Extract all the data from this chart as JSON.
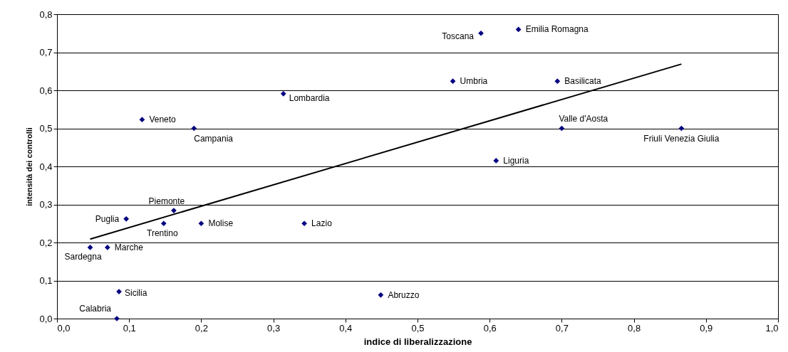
{
  "chart_data": {
    "type": "scatter",
    "xlabel": "indice di liberalizzazione",
    "ylabel": "intensità dei controlli",
    "grid": "y",
    "xlim": [
      0,
      1
    ],
    "ylim": [
      0,
      0.8
    ],
    "xticks": [
      {
        "value": 0,
        "label": "0,0"
      },
      {
        "value": 0.1,
        "label": "0,1"
      },
      {
        "value": 0.2,
        "label": "0,2"
      },
      {
        "value": 0.3,
        "label": "0,3"
      },
      {
        "value": 0.4,
        "label": "0,4"
      },
      {
        "value": 0.5,
        "label": "0,5"
      },
      {
        "value": 0.6,
        "label": "0,6"
      },
      {
        "value": 0.7,
        "label": "0,7"
      },
      {
        "value": 0.8,
        "label": "0,8"
      },
      {
        "value": 0.9,
        "label": "0,9"
      },
      {
        "value": 1,
        "label": "1,0"
      }
    ],
    "yticks": [
      {
        "value": 0,
        "label": "0,0"
      },
      {
        "value": 0.1,
        "label": "0,1"
      },
      {
        "value": 0.2,
        "label": "0,2"
      },
      {
        "value": 0.3,
        "label": "0,3"
      },
      {
        "value": 0.4,
        "label": "0,4"
      },
      {
        "value": 0.5,
        "label": "0,5"
      },
      {
        "value": 0.6,
        "label": "0,6"
      },
      {
        "value": 0.7,
        "label": "0,7"
      },
      {
        "value": 0.8,
        "label": "0,8"
      }
    ],
    "series": [
      {
        "marker": "diamond",
        "color": "#000080",
        "x": [
          0.64,
          0.588,
          0.549,
          0.694,
          0.314,
          0.118,
          0.19,
          0.7,
          0.866,
          0.609,
          0.162,
          0.096,
          0.148,
          0.2,
          0.343,
          0.046,
          0.07,
          0.086,
          0.449,
          0.083
        ],
        "values": [
          0.76,
          0.75,
          0.624,
          0.624,
          0.591,
          0.523,
          0.5,
          0.5,
          0.5,
          0.415,
          0.284,
          0.262,
          0.25,
          0.25,
          0.25,
          0.187,
          0.187,
          0.071,
          0.062,
          0.0
        ]
      },
      {
        "type": "line",
        "marker": "none",
        "color": "#000000",
        "x": [
          0.046,
          0.866
        ],
        "values": [
          0.209,
          0.669
        ]
      }
    ],
    "annotations": [
      {
        "text": "Emilia Romagna",
        "x": 0.64,
        "y": 0.76
      },
      {
        "text": "Toscana",
        "x": 0.588,
        "y": 0.75
      },
      {
        "text": "Umbria",
        "x": 0.549,
        "y": 0.624
      },
      {
        "text": "Basilicata",
        "x": 0.694,
        "y": 0.624
      },
      {
        "text": "Lombardia",
        "x": 0.314,
        "y": 0.591
      },
      {
        "text": "Veneto",
        "x": 0.118,
        "y": 0.523
      },
      {
        "text": "Campania",
        "x": 0.19,
        "y": 0.5
      },
      {
        "text": "Valle d'Aosta",
        "x": 0.7,
        "y": 0.5
      },
      {
        "text": "Friuli Venezia Giulia",
        "x": 0.866,
        "y": 0.5
      },
      {
        "text": "Liguria",
        "x": 0.609,
        "y": 0.415
      },
      {
        "text": "Piemonte",
        "x": 0.162,
        "y": 0.284
      },
      {
        "text": "Puglia",
        "x": 0.096,
        "y": 0.262
      },
      {
        "text": "Trentino",
        "x": 0.148,
        "y": 0.25
      },
      {
        "text": "Molise",
        "x": 0.2,
        "y": 0.25
      },
      {
        "text": "Lazio",
        "x": 0.343,
        "y": 0.25
      },
      {
        "text": "Sardegna",
        "x": 0.046,
        "y": 0.187
      },
      {
        "text": "Marche",
        "x": 0.07,
        "y": 0.187
      },
      {
        "text": "Sicilia",
        "x": 0.086,
        "y": 0.071
      },
      {
        "text": "Abruzzo",
        "x": 0.449,
        "y": 0.062
      },
      {
        "text": "Calabria",
        "x": 0.083,
        "y": 0.0
      }
    ]
  }
}
